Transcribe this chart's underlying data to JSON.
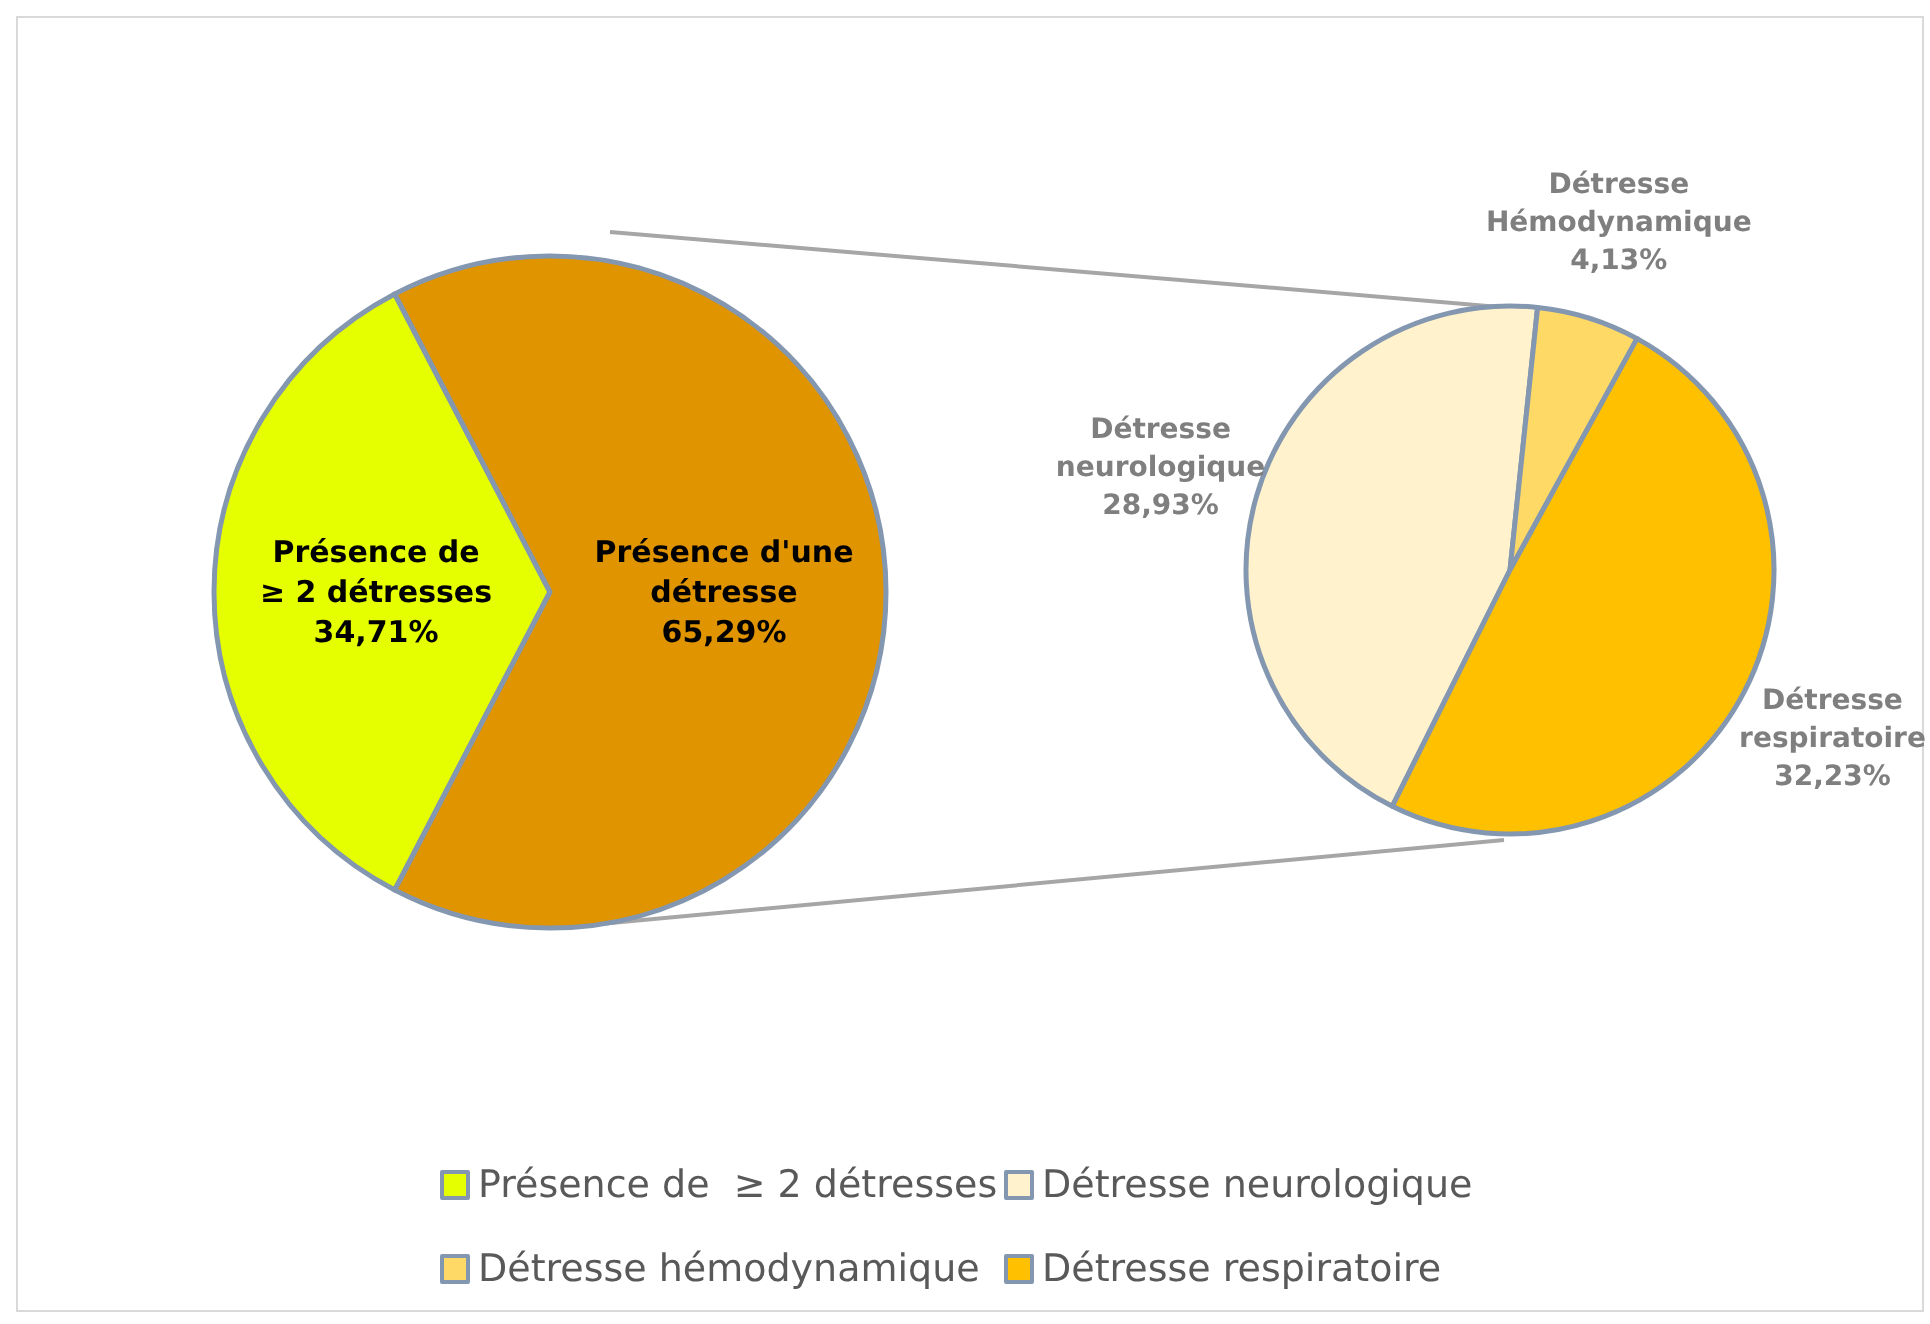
{
  "chart_data": [
    {
      "type": "pie",
      "categories": [
        "Présence de  ≥ 2 détresses",
        null
      ],
      "values": [
        34.71,
        65.29
      ],
      "colors": [
        "#e5ff00",
        "#df9400"
      ],
      "value_labels": [
        "Présence de\n≥ 2 détresses\n34,71%",
        "Présence d'une\ndétresse\n65,29%"
      ],
      "legend": "bottom"
    },
    {
      "type": "pie",
      "categories": [
        "Détresse neurologique",
        "Détresse hémodynamique",
        "Détresse respiratoire"
      ],
      "values": [
        28.93,
        4.13,
        32.23
      ],
      "colors": [
        "#fff2cc",
        "#ffd966",
        "#ffc000"
      ],
      "value_labels": [
        "Détresse\nneurologique\n28,93%",
        "Détresse\nHémodynamique\n4,13%",
        "Détresse\nrespiratoire\n32,23%"
      ],
      "legend": "bottom"
    }
  ]
}
